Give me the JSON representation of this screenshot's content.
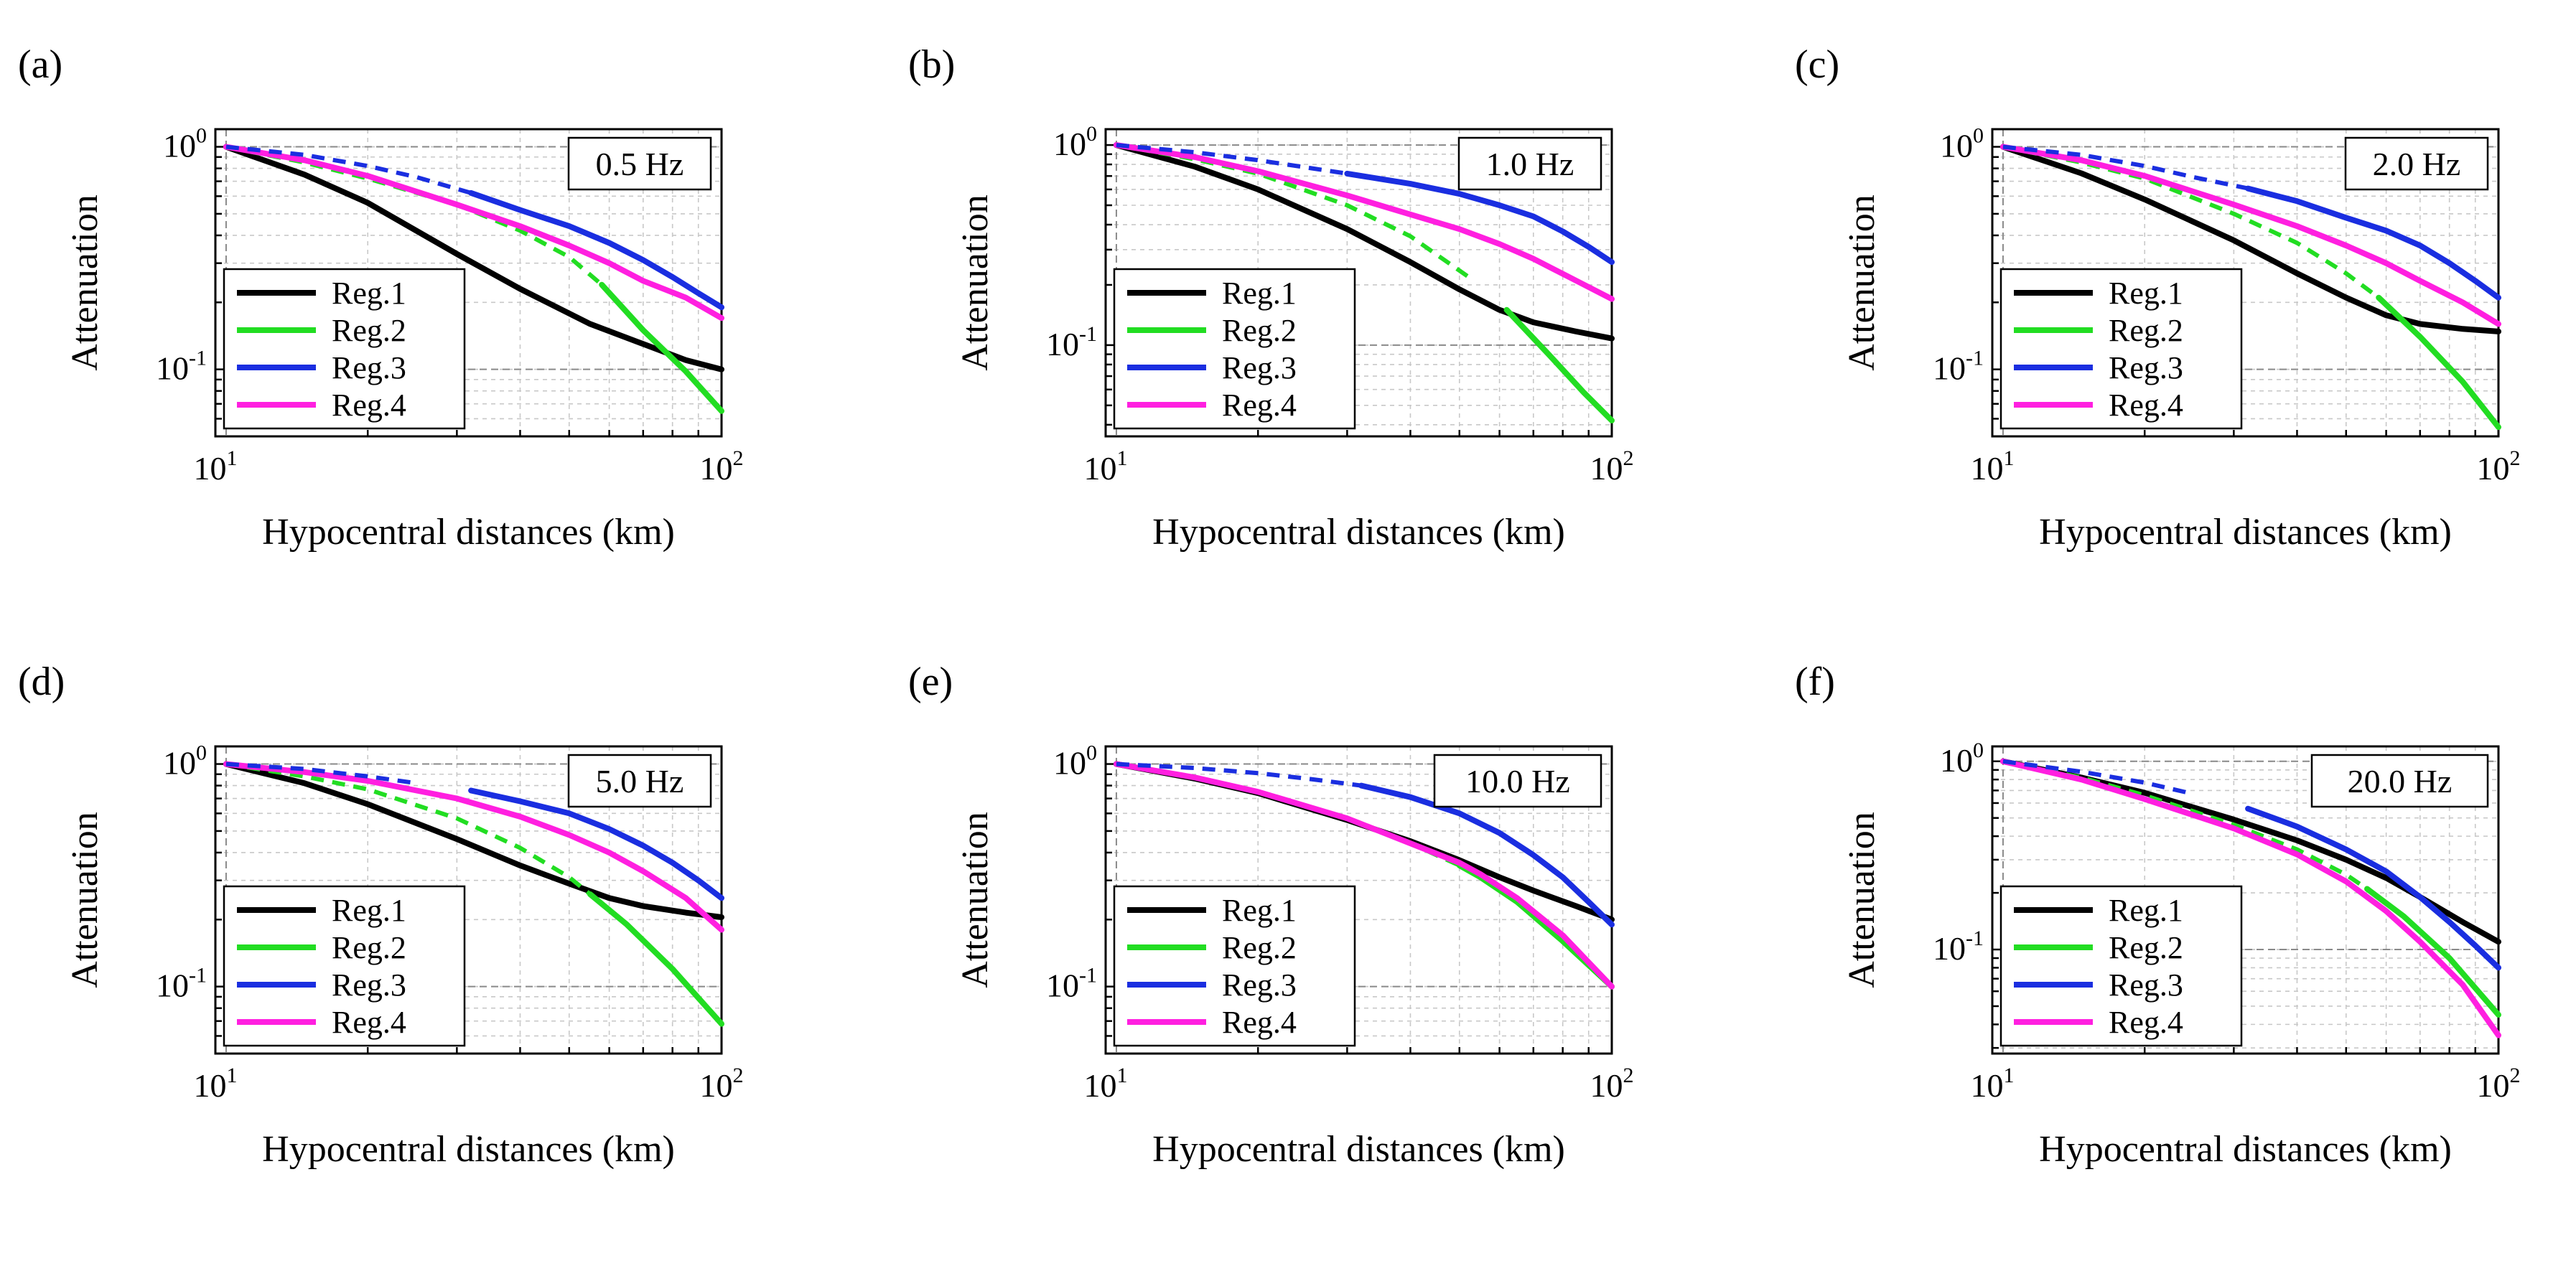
{
  "figure": {
    "colors": {
      "reg1": "#000000",
      "reg2": "#22dd22",
      "reg3": "#1a2ee0",
      "reg4": "#ff1fe0"
    }
  },
  "chart_data": [
    {
      "type": "line",
      "panel_label": "(a)",
      "frequency_label": "0.5 Hz",
      "xscale": "log",
      "yscale": "log",
      "xlim": [
        10,
        100
      ],
      "ylim": [
        0.05,
        1.2
      ],
      "xlabel": "Hypocentral distances (km)",
      "ylabel": "Attenuation",
      "x_ticks": [
        {
          "base": "10",
          "exp": "1"
        },
        {
          "base": "10",
          "exp": "2"
        }
      ],
      "y_ticks": [
        {
          "base": "10",
          "exp": "0"
        },
        {
          "base": "10",
          "exp": "-1"
        }
      ],
      "legend": {
        "position": "lower-left",
        "entries": [
          "Reg.1",
          "Reg.2",
          "Reg.3",
          "Reg.4"
        ]
      },
      "series": [
        {
          "name": "Reg.1",
          "color": "#000000",
          "x": [
            10.5,
            15,
            20,
            30,
            40,
            55,
            70,
            85,
            100
          ],
          "y": [
            1.0,
            0.75,
            0.56,
            0.33,
            0.23,
            0.16,
            0.13,
            0.11,
            0.1
          ],
          "dash_until": 0
        },
        {
          "name": "Reg.2",
          "color": "#22dd22",
          "x": [
            10.5,
            15,
            20,
            30,
            40,
            50,
            58,
            70,
            85,
            100
          ],
          "y": [
            1.0,
            0.85,
            0.72,
            0.55,
            0.42,
            0.32,
            0.24,
            0.15,
            0.098,
            0.065
          ],
          "dash_until": 58
        },
        {
          "name": "Reg.3",
          "color": "#1a2ee0",
          "x": [
            10.5,
            15,
            20,
            25,
            32,
            40,
            50,
            60,
            70,
            80,
            90,
            100
          ],
          "y": [
            1.0,
            0.92,
            0.82,
            0.73,
            0.62,
            0.52,
            0.44,
            0.37,
            0.31,
            0.26,
            0.22,
            0.19
          ],
          "dash_until": 32
        },
        {
          "name": "Reg.4",
          "color": "#ff1fe0",
          "x": [
            10.5,
            15,
            20,
            30,
            40,
            50,
            60,
            70,
            85,
            100
          ],
          "y": [
            1.0,
            0.87,
            0.74,
            0.55,
            0.44,
            0.36,
            0.3,
            0.25,
            0.21,
            0.17
          ],
          "dash_until": 0
        }
      ]
    },
    {
      "type": "line",
      "panel_label": "(b)",
      "frequency_label": "1.0 Hz",
      "xscale": "log",
      "yscale": "log",
      "xlim": [
        10,
        100
      ],
      "ylim": [
        0.035,
        1.2
      ],
      "xlabel": "Hypocentral distances (km)",
      "ylabel": "Attenuation",
      "x_ticks": [
        {
          "base": "10",
          "exp": "1"
        },
        {
          "base": "10",
          "exp": "2"
        }
      ],
      "y_ticks": [
        {
          "base": "10",
          "exp": "0"
        },
        {
          "base": "10",
          "exp": "-1"
        }
      ],
      "legend": {
        "position": "lower-left",
        "entries": [
          "Reg.1",
          "Reg.2",
          "Reg.3",
          "Reg.4"
        ]
      },
      "series": [
        {
          "name": "Reg.1",
          "color": "#000000",
          "x": [
            10.5,
            15,
            20,
            30,
            40,
            50,
            60,
            70,
            85,
            100
          ],
          "y": [
            1.0,
            0.78,
            0.6,
            0.38,
            0.26,
            0.19,
            0.15,
            0.13,
            0.117,
            0.108
          ],
          "dash_until": 0
        },
        {
          "name": "Reg.2",
          "color": "#22dd22",
          "x": [
            10.5,
            15,
            20,
            30,
            40,
            52,
            62,
            75,
            88,
            100
          ],
          "y": [
            1.0,
            0.85,
            0.72,
            0.5,
            0.35,
            0.22,
            0.15,
            0.09,
            0.058,
            0.042
          ],
          "dash_until": 55
        },
        {
          "name": "Reg.3",
          "color": "#1a2ee0",
          "x": [
            10.5,
            15,
            20,
            30,
            40,
            50,
            60,
            70,
            80,
            90,
            100
          ],
          "y": [
            1.0,
            0.92,
            0.84,
            0.72,
            0.64,
            0.57,
            0.5,
            0.44,
            0.37,
            0.31,
            0.26
          ],
          "dash_until": 30
        },
        {
          "name": "Reg.4",
          "color": "#ff1fe0",
          "x": [
            10.5,
            15,
            20,
            30,
            40,
            50,
            60,
            70,
            85,
            100
          ],
          "y": [
            1.0,
            0.87,
            0.74,
            0.56,
            0.45,
            0.38,
            0.32,
            0.27,
            0.21,
            0.17
          ],
          "dash_until": 0
        }
      ]
    },
    {
      "type": "line",
      "panel_label": "(c)",
      "frequency_label": "2.0 Hz",
      "xscale": "log",
      "yscale": "log",
      "xlim": [
        10,
        100
      ],
      "ylim": [
        0.05,
        1.2
      ],
      "xlabel": "Hypocentral distances (km)",
      "ylabel": "Attenuation",
      "x_ticks": [
        {
          "base": "10",
          "exp": "1"
        },
        {
          "base": "10",
          "exp": "2"
        }
      ],
      "y_ticks": [
        {
          "base": "10",
          "exp": "0"
        },
        {
          "base": "10",
          "exp": "-1"
        }
      ],
      "legend": {
        "position": "lower-left",
        "entries": [
          "Reg.1",
          "Reg.2",
          "Reg.3",
          "Reg.4"
        ]
      },
      "series": [
        {
          "name": "Reg.1",
          "color": "#000000",
          "x": [
            10.5,
            15,
            20,
            30,
            40,
            50,
            60,
            70,
            85,
            100
          ],
          "y": [
            1.0,
            0.76,
            0.58,
            0.38,
            0.27,
            0.21,
            0.175,
            0.16,
            0.152,
            0.148
          ],
          "dash_until": 0
        },
        {
          "name": "Reg.2",
          "color": "#22dd22",
          "x": [
            10.5,
            15,
            20,
            30,
            40,
            50,
            58,
            70,
            85,
            100
          ],
          "y": [
            1.0,
            0.85,
            0.72,
            0.5,
            0.37,
            0.27,
            0.21,
            0.14,
            0.088,
            0.055
          ],
          "dash_until": 58
        },
        {
          "name": "Reg.3",
          "color": "#1a2ee0",
          "x": [
            10.5,
            15,
            20,
            25,
            32,
            40,
            50,
            60,
            70,
            80,
            90,
            100
          ],
          "y": [
            1.0,
            0.92,
            0.82,
            0.73,
            0.65,
            0.57,
            0.48,
            0.42,
            0.36,
            0.3,
            0.25,
            0.21
          ],
          "dash_until": 32
        },
        {
          "name": "Reg.4",
          "color": "#ff1fe0",
          "x": [
            10.5,
            15,
            20,
            30,
            40,
            50,
            60,
            70,
            85,
            100
          ],
          "y": [
            1.0,
            0.87,
            0.74,
            0.55,
            0.44,
            0.36,
            0.3,
            0.25,
            0.2,
            0.16
          ],
          "dash_until": 0
        }
      ]
    },
    {
      "type": "line",
      "panel_label": "(d)",
      "frequency_label": "5.0 Hz",
      "xscale": "log",
      "yscale": "log",
      "xlim": [
        10,
        100
      ],
      "ylim": [
        0.05,
        1.2
      ],
      "xlabel": "Hypocentral distances (km)",
      "ylabel": "Attenuation",
      "x_ticks": [
        {
          "base": "10",
          "exp": "1"
        },
        {
          "base": "10",
          "exp": "2"
        }
      ],
      "y_ticks": [
        {
          "base": "10",
          "exp": "0"
        },
        {
          "base": "10",
          "exp": "-1"
        }
      ],
      "legend": {
        "position": "lower-left",
        "entries": [
          "Reg.1",
          "Reg.2",
          "Reg.3",
          "Reg.4"
        ]
      },
      "series": [
        {
          "name": "Reg.1",
          "color": "#000000",
          "x": [
            10.5,
            15,
            20,
            30,
            40,
            50,
            60,
            70,
            85,
            100
          ],
          "y": [
            1.0,
            0.82,
            0.66,
            0.46,
            0.35,
            0.29,
            0.25,
            0.23,
            0.215,
            0.205
          ],
          "dash_until": 0
        },
        {
          "name": "Reg.2",
          "color": "#22dd22",
          "x": [
            10.5,
            15,
            20,
            30,
            40,
            50,
            55,
            65,
            80,
            100
          ],
          "y": [
            1.0,
            0.88,
            0.77,
            0.57,
            0.42,
            0.31,
            0.26,
            0.19,
            0.12,
            0.068
          ],
          "dash_until": 55
        },
        {
          "name": "Reg.3",
          "color": "#1a2ee0",
          "x": [
            10.5,
            15,
            20,
            25,
            32,
            40,
            50,
            60,
            70,
            80,
            90,
            100
          ],
          "y": [
            1.0,
            0.95,
            0.88,
            0.82,
            0.76,
            0.68,
            0.6,
            0.51,
            0.43,
            0.36,
            0.3,
            0.25
          ],
          "dash_until": 30
        },
        {
          "name": "Reg.4",
          "color": "#ff1fe0",
          "x": [
            10.5,
            15,
            20,
            30,
            40,
            50,
            60,
            70,
            85,
            100
          ],
          "y": [
            1.0,
            0.92,
            0.84,
            0.7,
            0.58,
            0.48,
            0.4,
            0.33,
            0.25,
            0.18
          ],
          "dash_until": 0
        }
      ]
    },
    {
      "type": "line",
      "panel_label": "(e)",
      "frequency_label": "10.0 Hz",
      "xscale": "log",
      "yscale": "log",
      "xlim": [
        10,
        100
      ],
      "ylim": [
        0.05,
        1.2
      ],
      "xlabel": "Hypocentral distances (km)",
      "ylabel": "Attenuation",
      "x_ticks": [
        {
          "base": "10",
          "exp": "1"
        },
        {
          "base": "10",
          "exp": "2"
        }
      ],
      "y_ticks": [
        {
          "base": "10",
          "exp": "0"
        },
        {
          "base": "10",
          "exp": "-1"
        }
      ],
      "legend": {
        "position": "lower-left",
        "entries": [
          "Reg.1",
          "Reg.2",
          "Reg.3",
          "Reg.4"
        ]
      },
      "series": [
        {
          "name": "Reg.1",
          "color": "#000000",
          "x": [
            10.5,
            15,
            20,
            30,
            40,
            50,
            60,
            70,
            85,
            100
          ],
          "y": [
            1.0,
            0.86,
            0.74,
            0.56,
            0.45,
            0.37,
            0.31,
            0.27,
            0.23,
            0.2
          ],
          "dash_until": 0
        },
        {
          "name": "Reg.2",
          "color": "#22dd22",
          "x": [
            10.5,
            15,
            20,
            30,
            40,
            50,
            55,
            65,
            80,
            100
          ],
          "y": [
            1.0,
            0.87,
            0.75,
            0.57,
            0.44,
            0.35,
            0.31,
            0.24,
            0.16,
            0.1
          ],
          "dash_until": 50
        },
        {
          "name": "Reg.3",
          "color": "#1a2ee0",
          "x": [
            10.5,
            15,
            20,
            25,
            32,
            40,
            50,
            60,
            70,
            80,
            90,
            100
          ],
          "y": [
            1.0,
            0.96,
            0.91,
            0.86,
            0.8,
            0.71,
            0.6,
            0.49,
            0.39,
            0.31,
            0.24,
            0.19
          ],
          "dash_until": 32
        },
        {
          "name": "Reg.4",
          "color": "#ff1fe0",
          "x": [
            10.5,
            15,
            20,
            30,
            40,
            50,
            55,
            65,
            80,
            100
          ],
          "y": [
            1.0,
            0.87,
            0.75,
            0.57,
            0.44,
            0.36,
            0.32,
            0.25,
            0.17,
            0.1
          ],
          "dash_until": 0
        }
      ]
    },
    {
      "type": "line",
      "panel_label": "(f)",
      "frequency_label": "20.0 Hz",
      "xscale": "log",
      "yscale": "log",
      "xlim": [
        10,
        100
      ],
      "ylim": [
        0.028,
        1.2
      ],
      "xlabel": "Hypocentral distances (km)",
      "ylabel": "Attenuation",
      "x_ticks": [
        {
          "base": "10",
          "exp": "1"
        },
        {
          "base": "10",
          "exp": "2"
        }
      ],
      "y_ticks": [
        {
          "base": "10",
          "exp": "0"
        },
        {
          "base": "10",
          "exp": "-1"
        }
      ],
      "legend": {
        "position": "lower-left",
        "entries": [
          "Reg.1",
          "Reg.2",
          "Reg.3",
          "Reg.4"
        ]
      },
      "series": [
        {
          "name": "Reg.1",
          "color": "#000000",
          "x": [
            10.5,
            15,
            20,
            30,
            40,
            50,
            60,
            70,
            85,
            100
          ],
          "y": [
            1.0,
            0.82,
            0.68,
            0.49,
            0.38,
            0.3,
            0.24,
            0.19,
            0.14,
            0.11
          ],
          "dash_until": 0
        },
        {
          "name": "Reg.2",
          "color": "#22dd22",
          "x": [
            10.5,
            15,
            20,
            30,
            40,
            50,
            55,
            65,
            80,
            100
          ],
          "y": [
            1.0,
            0.82,
            0.66,
            0.46,
            0.34,
            0.25,
            0.21,
            0.15,
            0.09,
            0.045
          ],
          "dash_until": 55
        },
        {
          "name": "Reg.3",
          "color": "#1a2ee0",
          "x": [
            10.5,
            15,
            20,
            25,
            32,
            40,
            50,
            60,
            70,
            80,
            90,
            100
          ],
          "y": [
            1.0,
            0.88,
            0.77,
            0.67,
            0.56,
            0.45,
            0.34,
            0.26,
            0.19,
            0.14,
            0.105,
            0.08
          ],
          "dash_until": 30
        },
        {
          "name": "Reg.4",
          "color": "#ff1fe0",
          "x": [
            10.5,
            15,
            20,
            30,
            40,
            50,
            60,
            70,
            85,
            100
          ],
          "y": [
            1.0,
            0.8,
            0.63,
            0.44,
            0.32,
            0.23,
            0.16,
            0.11,
            0.065,
            0.035
          ],
          "dash_until": 0
        }
      ]
    }
  ]
}
